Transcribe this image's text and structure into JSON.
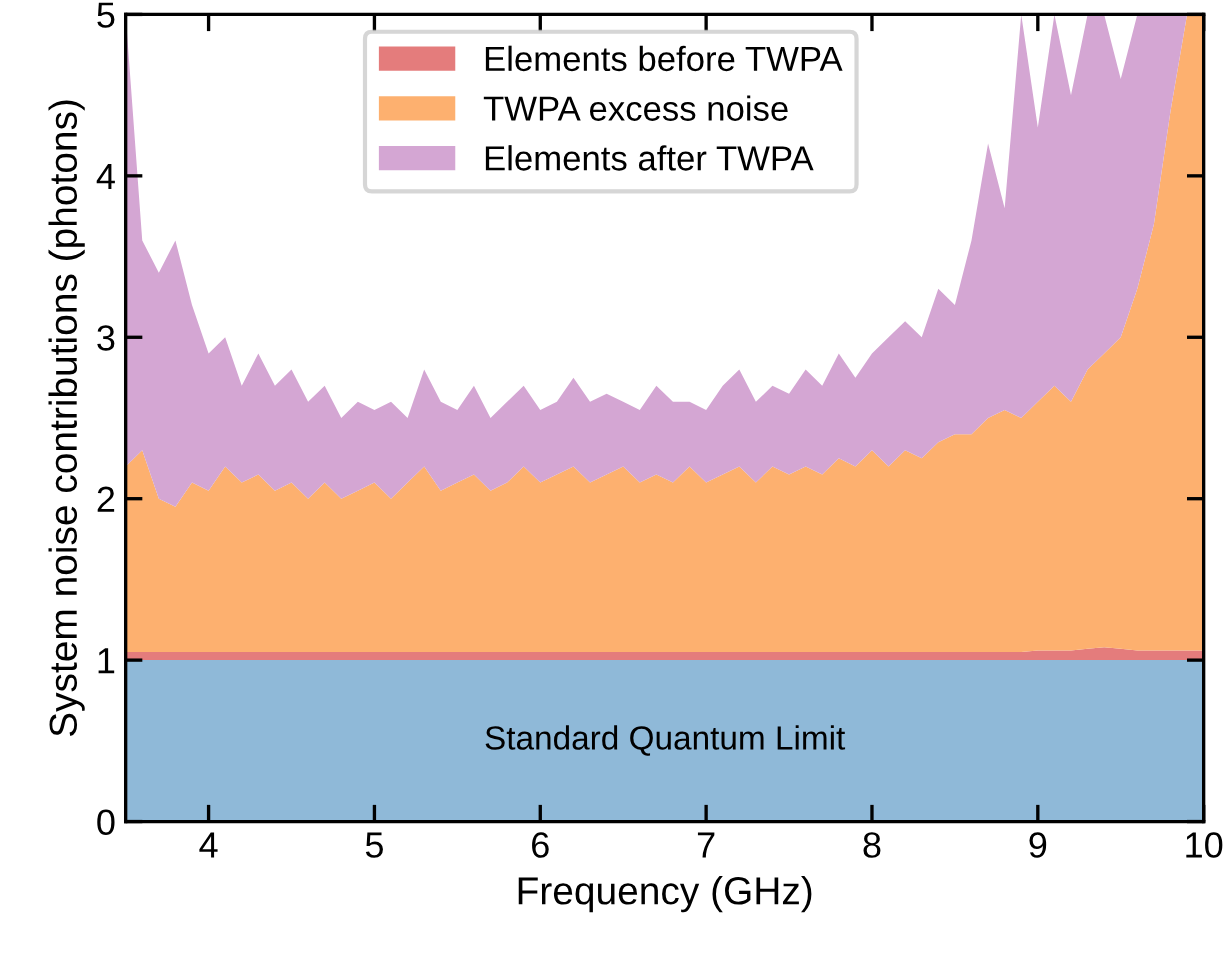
{
  "chart_data": {
    "type": "area",
    "stacked": true,
    "xlabel": "Frequency (GHz)",
    "ylabel": "System noise contributions (photons)",
    "x": [
      3.5,
      3.6,
      3.7,
      3.8,
      3.9,
      4.0,
      4.1,
      4.2,
      4.3,
      4.4,
      4.5,
      4.6,
      4.7,
      4.8,
      4.9,
      5.0,
      5.1,
      5.2,
      5.3,
      5.4,
      5.5,
      5.6,
      5.7,
      5.8,
      5.9,
      6.0,
      6.1,
      6.2,
      6.3,
      6.4,
      6.5,
      6.6,
      6.7,
      6.8,
      6.9,
      7.0,
      7.1,
      7.2,
      7.3,
      7.4,
      7.5,
      7.6,
      7.7,
      7.8,
      7.9,
      8.0,
      8.1,
      8.2,
      8.3,
      8.4,
      8.5,
      8.6,
      8.7,
      8.8,
      8.9,
      9.0,
      9.1,
      9.2,
      9.3,
      9.4,
      9.5,
      9.6,
      9.7,
      9.8,
      9.9,
      10.0
    ],
    "series": [
      {
        "color": "#8fb9d8",
        "values": [
          1,
          1,
          1,
          1,
          1,
          1,
          1,
          1,
          1,
          1,
          1,
          1,
          1,
          1,
          1,
          1,
          1,
          1,
          1,
          1,
          1,
          1,
          1,
          1,
          1,
          1,
          1,
          1,
          1,
          1,
          1,
          1,
          1,
          1,
          1,
          1,
          1,
          1,
          1,
          1,
          1,
          1,
          1,
          1,
          1,
          1,
          1,
          1,
          1,
          1,
          1,
          1,
          1,
          1,
          1,
          1,
          1,
          1,
          1,
          1,
          1,
          1,
          1,
          1,
          1,
          1
        ]
      },
      {
        "name": "Elements before TWPA",
        "color": "#e47c7c",
        "values": [
          0.05,
          0.05,
          0.05,
          0.05,
          0.05,
          0.05,
          0.05,
          0.05,
          0.05,
          0.05,
          0.05,
          0.05,
          0.05,
          0.05,
          0.05,
          0.05,
          0.05,
          0.05,
          0.05,
          0.05,
          0.05,
          0.05,
          0.05,
          0.05,
          0.05,
          0.05,
          0.05,
          0.05,
          0.05,
          0.05,
          0.05,
          0.05,
          0.05,
          0.05,
          0.05,
          0.05,
          0.05,
          0.05,
          0.05,
          0.05,
          0.05,
          0.05,
          0.05,
          0.05,
          0.05,
          0.05,
          0.05,
          0.05,
          0.05,
          0.05,
          0.05,
          0.05,
          0.05,
          0.05,
          0.05,
          0.06,
          0.06,
          0.06,
          0.07,
          0.08,
          0.07,
          0.06,
          0.06,
          0.06,
          0.06,
          0.06
        ]
      },
      {
        "name": "TWPA excess noise",
        "color": "#fdb06f",
        "values": [
          1.15,
          1.25,
          0.95,
          0.9,
          1.05,
          1.0,
          1.15,
          1.05,
          1.1,
          1.0,
          1.05,
          0.95,
          1.05,
          0.95,
          1.0,
          1.05,
          0.95,
          1.05,
          1.15,
          1.0,
          1.05,
          1.1,
          1.0,
          1.05,
          1.15,
          1.05,
          1.1,
          1.15,
          1.05,
          1.1,
          1.15,
          1.05,
          1.1,
          1.05,
          1.15,
          1.05,
          1.1,
          1.15,
          1.05,
          1.15,
          1.1,
          1.15,
          1.1,
          1.2,
          1.15,
          1.25,
          1.15,
          1.25,
          1.2,
          1.3,
          1.35,
          1.35,
          1.45,
          1.5,
          1.45,
          1.54,
          1.64,
          1.54,
          1.73,
          1.82,
          1.93,
          2.24,
          2.64,
          3.34,
          3.94,
          3.94
        ]
      },
      {
        "name": "Elements after TWPA",
        "color": "#d4a6d3",
        "values": [
          2.8,
          1.3,
          1.4,
          1.65,
          1.1,
          0.85,
          0.8,
          0.6,
          0.75,
          0.65,
          0.7,
          0.6,
          0.6,
          0.5,
          0.55,
          0.45,
          0.6,
          0.4,
          0.6,
          0.55,
          0.45,
          0.55,
          0.45,
          0.5,
          0.5,
          0.45,
          0.45,
          0.55,
          0.5,
          0.5,
          0.4,
          0.45,
          0.55,
          0.5,
          0.4,
          0.45,
          0.55,
          0.6,
          0.5,
          0.5,
          0.5,
          0.6,
          0.55,
          0.65,
          0.55,
          0.6,
          0.8,
          0.8,
          0.75,
          0.95,
          0.8,
          1.2,
          1.7,
          1.25,
          2.5,
          1.7,
          2.3,
          1.9,
          2.2,
          2.1,
          1.6,
          1.7,
          1.3,
          0.6,
          0,
          0
        ]
      }
    ],
    "annotations": [
      "Standard Quantum Limit"
    ],
    "xlim": [
      3.5,
      10
    ],
    "xticks": [
      4,
      5,
      6,
      7,
      8,
      9,
      10
    ],
    "ylim": [
      0,
      5
    ],
    "yticks": [
      0,
      1,
      2,
      3,
      4,
      5
    ],
    "legend": "top"
  }
}
